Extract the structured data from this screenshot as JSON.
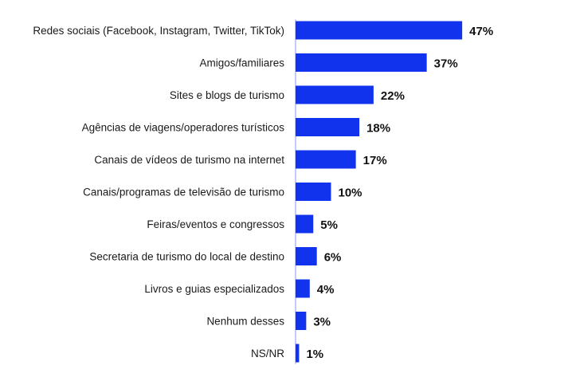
{
  "chart_data": {
    "type": "bar",
    "orientation": "horizontal",
    "categories": [
      "Redes sociais (Facebook, Instagram, Twitter, TikTok)",
      "Amigos/familiares",
      "Sites e blogs de turismo",
      "Agências de viagens/operadores turísticos",
      "Canais de vídeos de turismo na internet",
      "Canais/programas de televisão de turismo",
      "Feiras/eventos e congressos",
      "Secretaria de turismo do local de destino",
      "Livros e guias especializados",
      "Nenhum desses",
      "NS/NR"
    ],
    "values": [
      47,
      37,
      22,
      18,
      17,
      10,
      5,
      6,
      4,
      3,
      1
    ],
    "value_labels": [
      "47%",
      "37%",
      "22%",
      "18%",
      "17%",
      "10%",
      "5%",
      "6%",
      "4%",
      "3%",
      "1%"
    ],
    "bar_color": "#1133EE",
    "grid": false,
    "legend": "none"
  }
}
